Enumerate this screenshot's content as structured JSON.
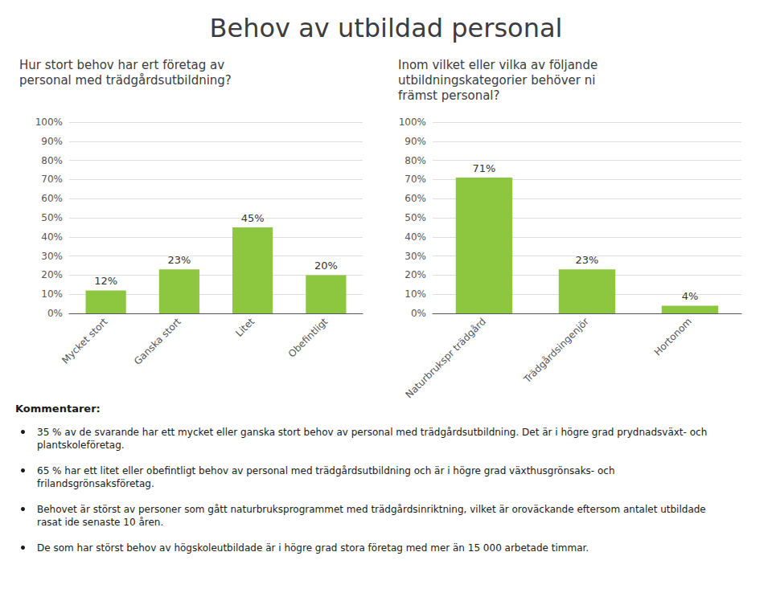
{
  "title": "Behov av utbildad personal",
  "annotations": [
    "Kommentarer:",
    "35 % av de svarande har ett mycket eller ganska stort behov av personal med trädgårdsutbildning. Det är i högre grad prydnadsväxt- och plantskoleföretag.",
    "65 % har ett litet eller obefintligt behov av personal med trädgårdsutbildning och är i högre grad växthusgrönsaks- och frilandsgrönsaksföretag.",
    "Behovet är störst av personer som gått naturbruksprogrammet med trädgårdsinriktning, vilket är oroväckande eftersom antalet utbildade rasat ide senaste 10 åren.",
    "De som har störst behov av högskoleutbildade är i högre grad stora företag med mer än 15 000 arbetade timmar."
  ],
  "chart_data": [
    {
      "type": "bar",
      "title": "Hur stort behov har ert företag av\npersonal med trädgårdsutbildning?",
      "categories": [
        "Mycket stort",
        "Ganska stort",
        "Litet",
        "Obefintligt"
      ],
      "values": [
        12,
        23,
        45,
        20
      ],
      "value_labels": [
        "12%",
        "23%",
        "45%",
        "20%"
      ],
      "color": "#8dc63f",
      "ylim": [
        0,
        100
      ],
      "yticks": [
        {
          "value": 0,
          "label": "0%"
        },
        {
          "value": 10,
          "label": "10%"
        },
        {
          "value": 20,
          "label": "20%"
        },
        {
          "value": 30,
          "label": "30%"
        },
        {
          "value": 40,
          "label": "40%"
        },
        {
          "value": 50,
          "label": "50%"
        },
        {
          "value": 60,
          "label": "60%"
        },
        {
          "value": 70,
          "label": "70%"
        },
        {
          "value": 80,
          "label": "80%"
        },
        {
          "value": 90,
          "label": "90%"
        },
        {
          "value": 100,
          "label": "100%"
        }
      ],
      "grid": true,
      "data_labels": true
    },
    {
      "type": "bar",
      "title": "Inom vilket eller vilka av följande\nutbildningskategorier behöver ni\nfrämst personal?",
      "categories": [
        "Naturbrukspr trädgård",
        "Trädgårdsingenjör",
        "Hortonom"
      ],
      "values": [
        71,
        23,
        4
      ],
      "value_labels": [
        "71%",
        "23%",
        "4%"
      ],
      "color": "#8dc63f",
      "ylim": [
        0,
        100
      ],
      "yticks": [
        {
          "value": 0,
          "label": "0%"
        },
        {
          "value": 10,
          "label": "10%"
        },
        {
          "value": 20,
          "label": "20%"
        },
        {
          "value": 30,
          "label": "30%"
        },
        {
          "value": 40,
          "label": "40%"
        },
        {
          "value": 50,
          "label": "50%"
        },
        {
          "value": 60,
          "label": "60%"
        },
        {
          "value": 70,
          "label": "70%"
        },
        {
          "value": 80,
          "label": "80%"
        },
        {
          "value": 90,
          "label": "90%"
        },
        {
          "value": 100,
          "label": "100%"
        }
      ],
      "grid": true,
      "data_labels": true
    }
  ]
}
